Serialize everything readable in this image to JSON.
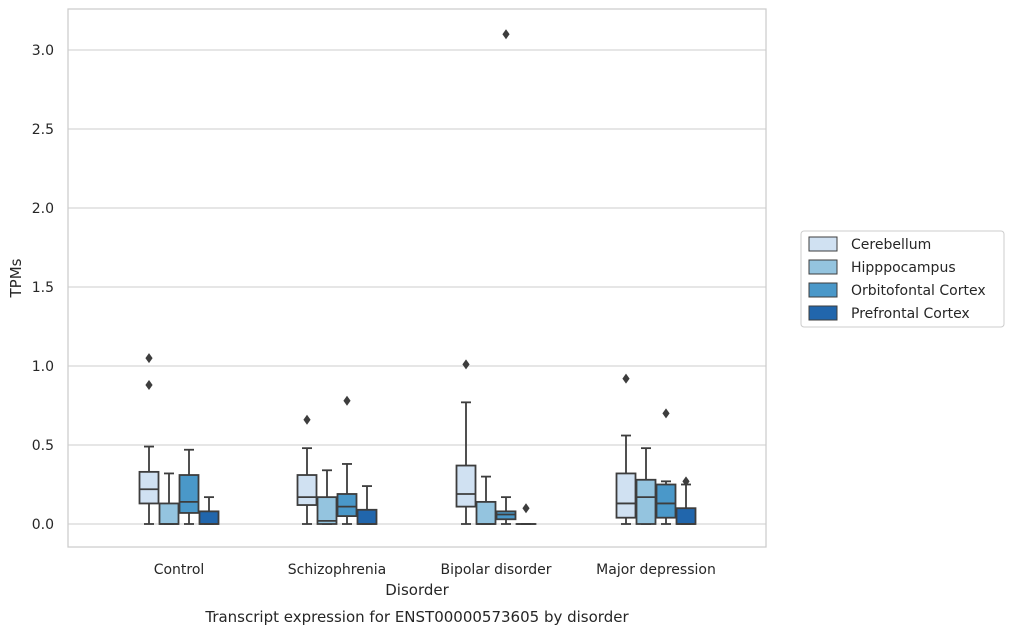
{
  "caption": "Transcript expression for ENST00000573605 by disorder",
  "chart_data": {
    "type": "box",
    "title": "",
    "xlabel": "Disorder",
    "ylabel": "TPMs",
    "categories": [
      "Control",
      "Schizophrenia",
      "Bipolar disorder",
      "Major depression"
    ],
    "ylim": [
      -0.15,
      3.25
    ],
    "yticks": [
      0.0,
      0.5,
      1.0,
      1.5,
      2.0,
      2.5,
      3.0
    ],
    "ytick_labels": [
      "0.0",
      "0.5",
      "1.0",
      "1.5",
      "2.0",
      "2.5",
      "3.0"
    ],
    "grid": true,
    "legend_position": "right",
    "series": [
      {
        "name": "Cerebellum",
        "color": "#d0e1f2",
        "boxes": [
          {
            "low": 0.0,
            "q1": 0.13,
            "median": 0.22,
            "q3": 0.33,
            "high": 0.49,
            "outliers": [
              0.88,
              1.05
            ]
          },
          {
            "low": 0.0,
            "q1": 0.12,
            "median": 0.17,
            "q3": 0.31,
            "high": 0.48,
            "outliers": [
              0.66
            ]
          },
          {
            "low": 0.0,
            "q1": 0.11,
            "median": 0.19,
            "q3": 0.37,
            "high": 0.77,
            "outliers": [
              1.01
            ]
          },
          {
            "low": 0.0,
            "q1": 0.04,
            "median": 0.13,
            "q3": 0.32,
            "high": 0.56,
            "outliers": [
              0.92
            ]
          }
        ]
      },
      {
        "name": "Hipppocampus",
        "color": "#94c4df",
        "boxes": [
          {
            "low": 0.0,
            "q1": 0.0,
            "median": 0.0,
            "q3": 0.13,
            "high": 0.32,
            "outliers": []
          },
          {
            "low": 0.0,
            "q1": 0.0,
            "median": 0.02,
            "q3": 0.17,
            "high": 0.34,
            "outliers": []
          },
          {
            "low": 0.0,
            "q1": 0.0,
            "median": 0.0,
            "q3": 0.14,
            "high": 0.3,
            "outliers": []
          },
          {
            "low": 0.0,
            "q1": 0.0,
            "median": 0.17,
            "q3": 0.28,
            "high": 0.48,
            "outliers": []
          }
        ]
      },
      {
        "name": "Orbitofontal Cortex",
        "color": "#4a98c9",
        "boxes": [
          {
            "low": 0.0,
            "q1": 0.07,
            "median": 0.14,
            "q3": 0.31,
            "high": 0.47,
            "outliers": []
          },
          {
            "low": 0.0,
            "q1": 0.05,
            "median": 0.11,
            "q3": 0.19,
            "high": 0.38,
            "outliers": [
              0.78
            ]
          },
          {
            "low": 0.0,
            "q1": 0.03,
            "median": 0.06,
            "q3": 0.08,
            "high": 0.17,
            "outliers": [
              3.1
            ]
          },
          {
            "low": 0.0,
            "q1": 0.04,
            "median": 0.13,
            "q3": 0.25,
            "high": 0.27,
            "outliers": [
              0.7
            ]
          }
        ]
      },
      {
        "name": "Prefrontal Cortex",
        "color": "#2166ac",
        "boxes": [
          {
            "low": 0.0,
            "q1": 0.0,
            "median": 0.0,
            "q3": 0.08,
            "high": 0.17,
            "outliers": []
          },
          {
            "low": 0.0,
            "q1": 0.0,
            "median": 0.0,
            "q3": 0.09,
            "high": 0.24,
            "outliers": []
          },
          {
            "low": 0.0,
            "q1": 0.0,
            "median": 0.0,
            "q3": 0.0,
            "high": 0.0,
            "outliers": [
              0.1
            ]
          },
          {
            "low": 0.0,
            "q1": 0.0,
            "median": 0.0,
            "q3": 0.1,
            "high": 0.25,
            "outliers": [
              0.27
            ]
          }
        ]
      }
    ]
  }
}
